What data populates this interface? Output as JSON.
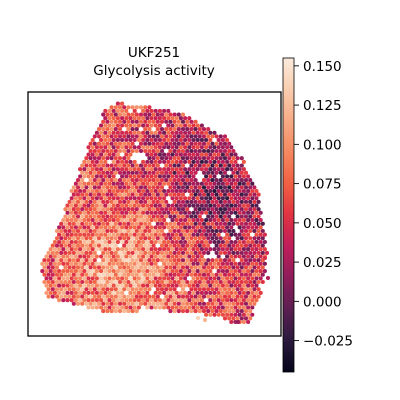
{
  "chart_data": {
    "type": "scatter",
    "title": "UKF251",
    "subtitle": "Glycolysis activity",
    "xlabel": "",
    "ylabel": "",
    "axis_ticks": false,
    "colormap": "rocket",
    "colormap_stops": [
      "#03051a",
      "#2b1a3e",
      "#5b1e51",
      "#8e1d5b",
      "#be1e5a",
      "#e13342",
      "#f06043",
      "#f58860",
      "#f7ab85",
      "#f9cdaf",
      "#faebdd"
    ],
    "colorbar": {
      "vmin": -0.045,
      "vmax": 0.155,
      "ticks": [
        -0.025,
        0.0,
        0.025,
        0.05,
        0.075,
        0.1,
        0.125,
        0.15
      ],
      "tick_labels": [
        "−0.025",
        "0.000",
        "0.025",
        "0.050",
        "0.075",
        "0.100",
        "0.125",
        "0.150"
      ]
    },
    "spots": {
      "description_note": "",
      "n_points_estimate": 2600,
      "value_range": [
        -0.045,
        0.155
      ],
      "typical_value": 0.06
    }
  }
}
